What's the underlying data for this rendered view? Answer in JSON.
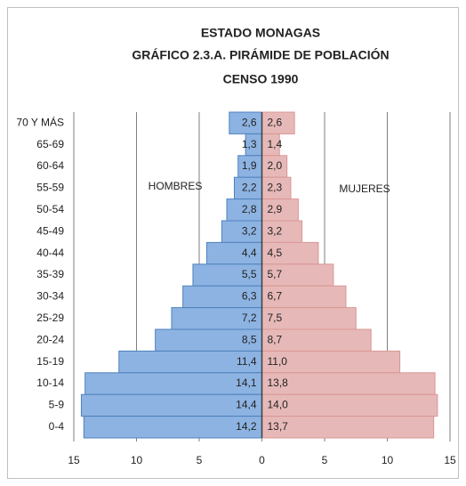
{
  "chart_data": {
    "type": "pyramid",
    "title": "ESTADO MONAGAS",
    "subtitle": "GRÁFICO 2.3.A. PIRÁMIDE DE POBLACIÓN",
    "subtitle2": "CENSO 1990",
    "annotations": [
      "HOMBRES",
      "MUJERES"
    ],
    "categories": [
      "70 Y MÁS",
      "65-69",
      "60-64",
      "55-59",
      "50-54",
      "45-49",
      "40-44",
      "35-39",
      "30-34",
      "25-29",
      "20-24",
      "15-19",
      "10-14",
      "5-9",
      "0-4"
    ],
    "series": [
      {
        "name": "HOMBRES",
        "color": "#8db3e2",
        "values": [
          -2.6,
          -1.3,
          -1.9,
          -2.2,
          -2.8,
          -3.2,
          -4.4,
          -5.5,
          -6.3,
          -7.2,
          -8.5,
          -11.4,
          -14.1,
          -14.4,
          -14.2
        ],
        "value_labels": [
          "2,6",
          "1,3",
          "1,9",
          "2,2",
          "2,8",
          "3,2",
          "4,4",
          "5,5",
          "6,3",
          "7,2",
          "8,5",
          "11,4",
          "14,1",
          "14,4",
          "14,2"
        ]
      },
      {
        "name": "MUJERES",
        "color": "#e6b9b8",
        "values": [
          2.6,
          1.4,
          2.0,
          2.3,
          2.9,
          3.2,
          4.5,
          5.7,
          6.7,
          7.5,
          8.7,
          11.0,
          13.8,
          14.0,
          13.7
        ],
        "value_labels": [
          "2,6",
          "1,4",
          "2,0",
          "2,3",
          "2,9",
          "3,2",
          "4,5",
          "5,7",
          "6,7",
          "7,5",
          "8,7",
          "11,0",
          "13,8",
          "14,0",
          "13,7"
        ]
      }
    ],
    "xlim": [
      -15,
      15
    ],
    "xticks": [
      {
        "value": -15,
        "label": "15"
      },
      {
        "value": -10,
        "label": "10"
      },
      {
        "value": -5,
        "label": "5"
      },
      0,
      5,
      10,
      15
    ],
    "grid": true
  }
}
